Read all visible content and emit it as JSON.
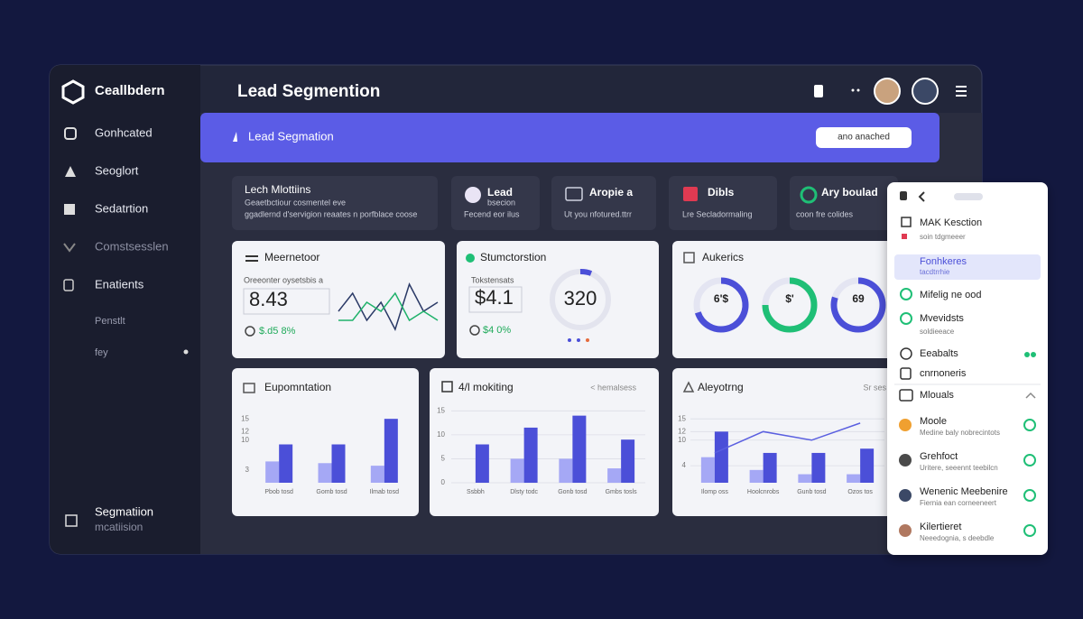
{
  "sidebar": {
    "brand": "Ceallbdern",
    "items": [
      "Gonhcated",
      "Seoglort",
      "Sedatrtion",
      "Comstsesslen",
      "Enatients",
      "Penstlt",
      "fey"
    ],
    "footer_title": "Segmatiion",
    "footer_subtitle": "mcatiision"
  },
  "header": {
    "title": "Lead Segmention"
  },
  "banner": {
    "title": "Lead Segmation",
    "button": "ano anached"
  },
  "stats": [
    {
      "title": "Lech Mlottiins",
      "subtitle": [
        "Geaetbctiour cosmentel eve",
        "ggadlernd d'servigion reaates n porfblace coose"
      ]
    },
    {
      "title": "Lead",
      "subtitle": [
        "bsecion",
        "Fecend eor ilus"
      ]
    },
    {
      "title": "Aropie a",
      "subtitle": [
        "Ut you nfotured.ttrr"
      ]
    },
    {
      "title": "Dibls",
      "subtitle": [
        "Lre Secladormaling"
      ]
    },
    {
      "title": "Ary boulad",
      "subtitle": [
        "coon fre colides"
      ]
    }
  ],
  "cards": [
    {
      "title": "Meernetoor",
      "label": "Oreeonter oysetsbis a",
      "value": "8.43",
      "delta": "$.d5 8%"
    },
    {
      "title": "Stumctorstion",
      "label": "Tokstensats",
      "value": "$4.1",
      "gauge": "320",
      "delta": "$4 0%"
    },
    {
      "title": "Aukerics",
      "donuts": [
        {
          "label": "6'$",
          "percent": 70,
          "color": "#4b4fd8"
        },
        {
          "label": "$'",
          "percent": 75,
          "color": "#1fbf76"
        },
        {
          "label": "69",
          "percent": 80,
          "color": "#4b4fd8"
        }
      ]
    },
    {
      "title": "Eupomntation"
    },
    {
      "title": "4/l mokiting",
      "note": "< hemalsess"
    },
    {
      "title": "Aleyotrng",
      "note": "Sr ses"
    }
  ],
  "chart_data": [
    {
      "type": "line",
      "series": [
        {
          "color": "#2b3a67",
          "values": [
            4,
            6,
            3,
            5,
            2,
            7,
            4,
            5
          ]
        },
        {
          "color": "#20b26b",
          "values": [
            3,
            3,
            5,
            4,
            6,
            3,
            4,
            3
          ]
        }
      ]
    },
    {
      "type": "bar",
      "categories": [
        "Pbob tosd",
        "Gomb tosd",
        "Ilmab tosd"
      ],
      "ylim": [
        0,
        18
      ],
      "yticks": [
        3,
        10,
        12,
        15
      ],
      "grid": false,
      "series": [
        {
          "color": "#a5a8f5",
          "values": [
            5,
            4.6,
            4
          ]
        },
        {
          "color": "#4b4fd8",
          "values": [
            9,
            9,
            15
          ]
        }
      ]
    },
    {
      "type": "bar",
      "categories": [
        "Ssbbh",
        "Dlsty todc",
        "Gonb tosd",
        "Gmbs tosls"
      ],
      "ylim": [
        0,
        16
      ],
      "yticks": [
        0,
        5,
        10,
        15
      ],
      "grid": true,
      "series": [
        {
          "color": "#a5a8f5",
          "values": [
            null,
            5,
            5,
            3
          ]
        },
        {
          "color": "#4b4fd8",
          "values": [
            8,
            11.5,
            14,
            9
          ]
        }
      ]
    },
    {
      "type": "bar",
      "categories": [
        "Ilomp oss",
        "Hoolcnrobs",
        "Gunb tosd",
        "Ozos tos"
      ],
      "ylim": [
        0,
        18
      ],
      "yticks": [
        4,
        10,
        12,
        15
      ],
      "grid": true,
      "series": [
        {
          "color": "#a5a8f5",
          "values": [
            6,
            3,
            2,
            2
          ]
        },
        {
          "color": "#4b4fd8",
          "values": [
            12,
            7,
            7,
            8
          ]
        },
        {
          "type": "line",
          "color": "#5a5fe0",
          "values": [
            7,
            12,
            10,
            14
          ]
        }
      ]
    }
  ],
  "side_panel": {
    "items": [
      {
        "title": "MAK Kesction",
        "subtitle": "soin tdgmeeer"
      },
      {
        "title": "Fonhkeres",
        "subtitle": "tacdtrrhie"
      },
      {
        "title": "Mifelig ne ood"
      },
      {
        "title": "Mvevidsts",
        "subtitle": "soldieeace"
      },
      {
        "title": "Eeabalts"
      },
      {
        "title": "cnrnoneris"
      }
    ],
    "section": "Mlouals",
    "people": [
      {
        "name": "Moole",
        "detail": "Medine baly nobrecintots"
      },
      {
        "name": "Grehfoct",
        "detail": "Uritere, seeennt teebilcn"
      },
      {
        "name": "Wenenic Meebenire",
        "detail": "Fiernia ean corneeneert"
      },
      {
        "name": "Kilertieret",
        "detail": "Neeedognia, s deebdle"
      }
    ]
  }
}
